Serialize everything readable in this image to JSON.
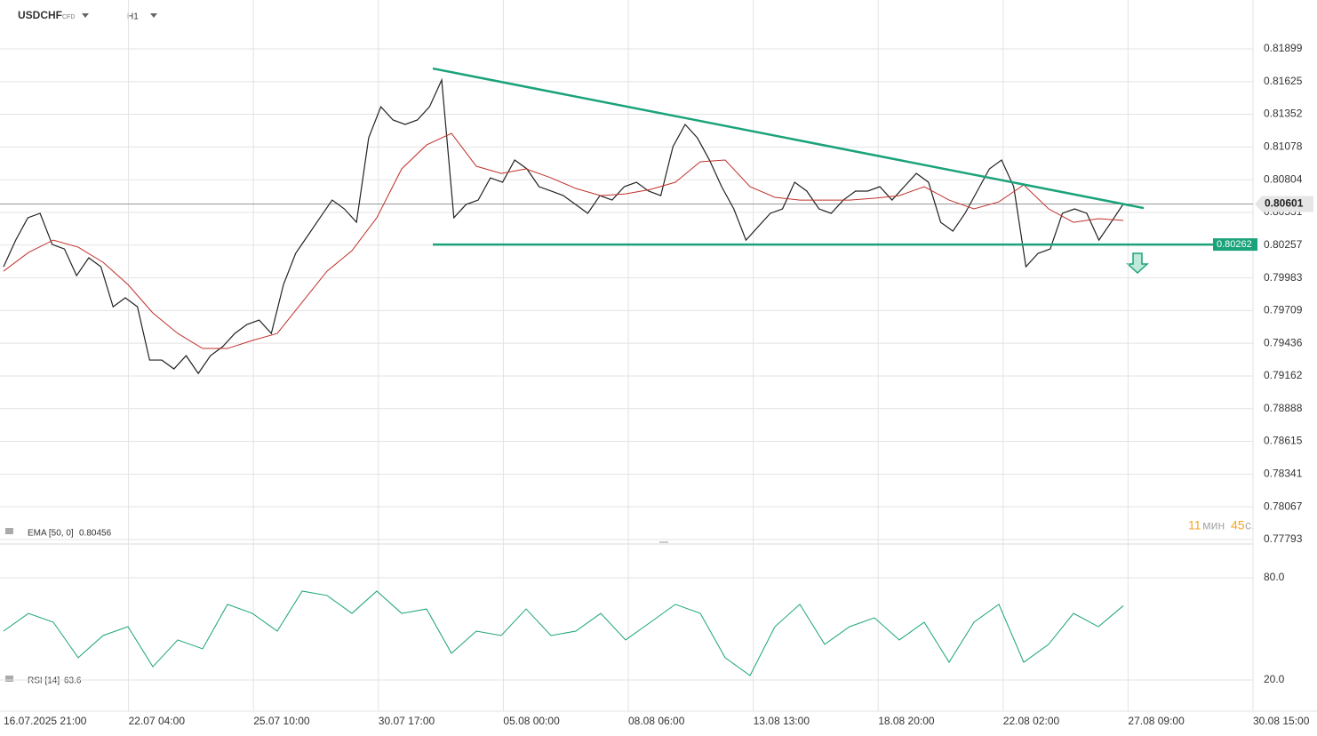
{
  "header": {
    "symbol": "USDCHF",
    "market": "CFD",
    "timeframe": "H1"
  },
  "timer": {
    "minutes": 11,
    "min_unit": "мин",
    "seconds": 45,
    "sec_unit": "с."
  },
  "chart_data": [
    {
      "type": "line",
      "grid": true,
      "xtick_labels": [
        "16.07.2025 21:00",
        "22.07 04:00",
        "25.07 10:00",
        "30.07 17:00",
        "05.08 00:00",
        "08.08 06:00",
        "13.08 13:00",
        "18.08 20:00",
        "22.08 02:00",
        "27.08 09:00",
        "30.08 15:00"
      ],
      "ylim": [
        0.7775,
        0.8223
      ],
      "yticks": [
        0.81899,
        0.81625,
        0.81352,
        0.81078,
        0.80804,
        0.80531,
        0.80257,
        0.79983,
        0.79709,
        0.79436,
        0.79162,
        0.78888,
        0.78615,
        0.78341,
        0.78067,
        0.77793
      ],
      "current_price": 0.80601,
      "level": 0.80262,
      "trendline": [
        0.81735,
        0.80567
      ],
      "series": [
        {
          "color": "#222222",
          "values": [
            0.80076,
            0.80299,
            0.80486,
            0.80523,
            0.80262,
            0.80225,
            0.80002,
            0.80151,
            0.80076,
            0.79741,
            0.79816,
            0.79741,
            0.79295,
            0.79295,
            0.79221,
            0.79332,
            0.79183,
            0.79332,
            0.79407,
            0.79518,
            0.79593,
            0.7963,
            0.79518,
            0.79927,
            0.80188,
            0.80337,
            0.80486,
            0.80634,
            0.8056,
            0.80448,
            0.81155,
            0.81415,
            0.81304,
            0.81267,
            0.81304,
            0.81415,
            0.81639,
            0.80486,
            0.80597,
            0.80634,
            0.8082,
            0.80783,
            0.80969,
            0.80895,
            0.80746,
            0.80709,
            0.80671,
            0.80597,
            0.80523,
            0.80671,
            0.80634,
            0.80746,
            0.80783,
            0.80709,
            0.80671,
            0.81081,
            0.81267,
            0.81155,
            0.80969,
            0.80746,
            0.8056,
            0.80299,
            0.80411,
            0.80523,
            0.8056,
            0.80783,
            0.80709,
            0.8056,
            0.80523,
            0.80634,
            0.80709,
            0.80709,
            0.80746,
            0.80634,
            0.80746,
            0.80857,
            0.80783,
            0.80448,
            0.80374,
            0.80523,
            0.80709,
            0.80895,
            0.80969,
            0.80746,
            0.80076,
            0.80188,
            0.80225,
            0.80523,
            0.8056,
            0.80523,
            0.80299,
            0.80448,
            0.80601
          ]
        },
        {
          "name": "EMA [50, 0]",
          "last_value": 0.80456,
          "color": "#c0302a",
          "values": [
            0.80039,
            0.80195,
            0.80299,
            0.8024,
            0.80113,
            0.79927,
            0.79689,
            0.79518,
            0.79392,
            0.79392,
            0.79459,
            0.79518,
            0.79779,
            0.80039,
            0.8021,
            0.80486,
            0.80895,
            0.81095,
            0.81192,
            0.80917,
            0.80857,
            0.80895,
            0.8082,
            0.80731,
            0.80671,
            0.80686,
            0.80723,
            0.80783,
            0.80954,
            0.80969,
            0.80746,
            0.80657,
            0.80634,
            0.80634,
            0.80634,
            0.80649,
            0.80671,
            0.80746,
            0.80634,
            0.8056,
            0.80619,
            0.80761,
            0.8056,
            0.80448,
            0.80478,
            0.80463
          ]
        }
      ]
    },
    {
      "type": "line",
      "ylim": [
        2,
        98
      ],
      "yticks": [
        {
          "value": 80,
          "label": "80.0"
        },
        {
          "value": 20,
          "label": "20.0"
        }
      ],
      "series": [
        {
          "name": "RSI [14]",
          "last_value": 63.6,
          "color": "#1aa37a",
          "values": [
            48.7,
            59.1,
            53.9,
            33.1,
            46.1,
            51.3,
            27.8,
            43.5,
            38.3,
            64.4,
            59.1,
            48.7,
            72.2,
            69.6,
            59.1,
            72.2,
            59.1,
            61.7,
            35.7,
            48.7,
            46.1,
            61.7,
            46.1,
            48.7,
            59.1,
            43.5,
            53.9,
            64.4,
            59.1,
            33.1,
            22.6,
            51.3,
            64.4,
            40.9,
            51.3,
            56.5,
            43.5,
            53.9,
            30.4,
            53.9,
            64.4,
            30.4,
            40.9,
            59.1,
            51.3,
            63.6
          ]
        }
      ]
    }
  ]
}
